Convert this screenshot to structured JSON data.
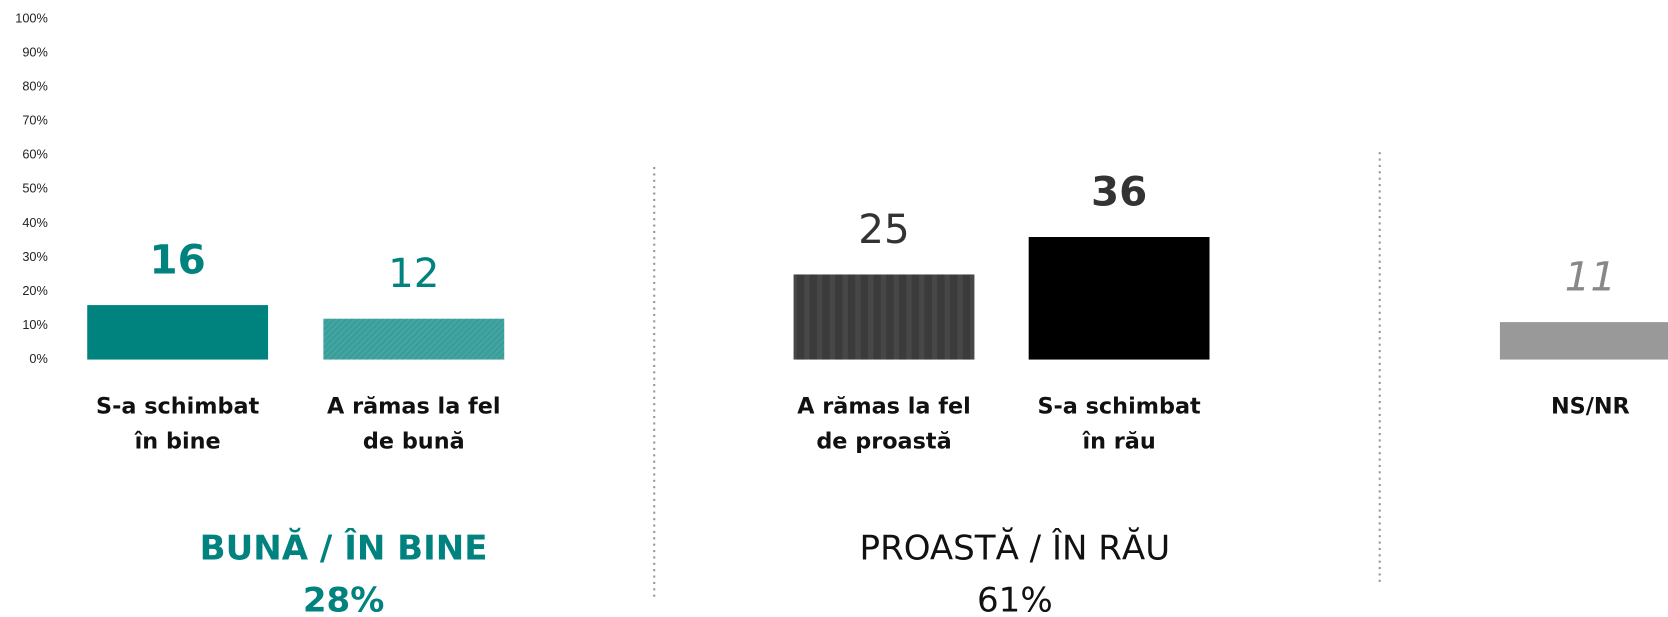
{
  "chart_data": {
    "type": "bar",
    "categories": [
      "S-a schimbat\nîn bine",
      "A rămas la fel\nde bună",
      "A rămas la fel\nde proastă",
      "S-a schimbat\nîn rău",
      "NS/NR"
    ],
    "values": [
      16,
      12,
      25,
      36,
      11
    ],
    "colors": [
      "#00827f",
      "#3a9e9a",
      "#3b3b3b",
      "#000000",
      "#999999"
    ],
    "label_colors": [
      "#00827f",
      "#00827f",
      "#333333",
      "#333333",
      "#888888"
    ],
    "ylim": [
      0,
      100
    ],
    "yticks": [
      {
        "value": 0,
        "label": "0%"
      },
      {
        "value": 10,
        "label": "10%"
      },
      {
        "value": 20,
        "label": "20%"
      },
      {
        "value": 30,
        "label": "30%"
      },
      {
        "value": 40,
        "label": "40%"
      },
      {
        "value": 50,
        "label": "50%"
      },
      {
        "value": 60,
        "label": "60%"
      },
      {
        "value": 70,
        "label": "70%"
      },
      {
        "value": 80,
        "label": "80%"
      },
      {
        "value": 90,
        "label": "90%"
      },
      {
        "value": 100,
        "label": "100%"
      }
    ],
    "groups": [
      {
        "name": "BUNĂ / ÎN BINE",
        "value": 28,
        "value_label": "28%",
        "color": "#00827f"
      },
      {
        "name": "PROASTĂ / ÎN RĂU",
        "value": 61,
        "value_label": "61%",
        "color": "#111111"
      }
    ]
  }
}
